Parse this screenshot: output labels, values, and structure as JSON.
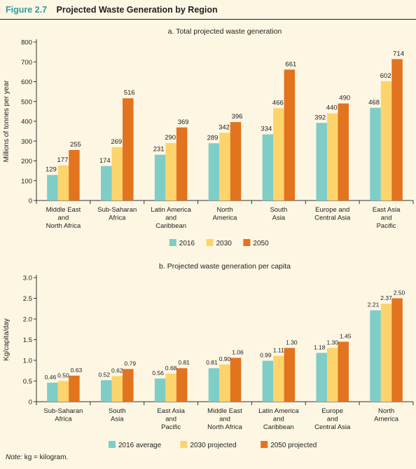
{
  "figure": {
    "label": "Figure 2.7",
    "title": "Projected Waste Generation by Region",
    "note_label": "Note:",
    "note_text": "kg = kilogram."
  },
  "colors": {
    "teal": "#7ecdc7",
    "yellow": "#fdd46c",
    "orange": "#e2731f",
    "background": "#fdf6e3"
  },
  "chart_data": [
    {
      "type": "bar",
      "title": "a. Total projected waste generation",
      "ylabel": "Millions of tonnes per year",
      "xlabel": "",
      "ylim": [
        0,
        800
      ],
      "yticks": [
        "0",
        "100",
        "200",
        "300",
        "400",
        "500",
        "600",
        "700",
        "800"
      ],
      "grid": false,
      "legend_position": "bottom",
      "categories": [
        [
          "Middle East",
          "and",
          "North Africa"
        ],
        [
          "Sub-Saharan",
          "Africa"
        ],
        [
          "Latin America",
          "and",
          "Caribbean"
        ],
        [
          "North",
          "America"
        ],
        [
          "South",
          "Asia"
        ],
        [
          "Europe and",
          "Central Asia"
        ],
        [
          "East Asia",
          "and",
          "Pacific"
        ]
      ],
      "series": [
        {
          "name": "2016",
          "color": "#7ecdc7",
          "values": [
            129,
            174,
            231,
            289,
            334,
            392,
            468
          ]
        },
        {
          "name": "2030",
          "color": "#fdd46c",
          "values": [
            177,
            269,
            290,
            342,
            466,
            440,
            602
          ]
        },
        {
          "name": "2050",
          "color": "#e2731f",
          "values": [
            255,
            516,
            369,
            396,
            661,
            490,
            714
          ]
        }
      ],
      "data_labels": [
        [
          "129",
          "174",
          "231",
          "289",
          "334",
          "392",
          "468"
        ],
        [
          "177",
          "269",
          "290",
          "342",
          "466",
          "440",
          "602"
        ],
        [
          "255",
          "516",
          "369",
          "396",
          "661",
          "490",
          "714"
        ]
      ]
    },
    {
      "type": "bar",
      "title": "b. Projected waste generation per capita",
      "ylabel": "Kg/capita/day",
      "xlabel": "",
      "ylim": [
        0,
        3.0
      ],
      "yticks": [
        "0",
        "0.5",
        "1.0",
        "1.5",
        "2.0",
        "2.5",
        "3.0"
      ],
      "grid": false,
      "legend_position": "bottom",
      "categories": [
        [
          "Sub-Saharan",
          "Africa"
        ],
        [
          "South",
          "Asia"
        ],
        [
          "East Asia",
          "and",
          "Pacific"
        ],
        [
          "Middle East",
          "and",
          "North Africa"
        ],
        [
          "Latin America",
          "and",
          "Caribbean"
        ],
        [
          "Europe",
          "and",
          "Central Asia"
        ],
        [
          "North",
          "America"
        ]
      ],
      "series": [
        {
          "name": "2016 average",
          "color": "#7ecdc7",
          "values": [
            0.46,
            0.52,
            0.56,
            0.81,
            0.99,
            1.18,
            2.21
          ]
        },
        {
          "name": "2030 projected",
          "color": "#fdd46c",
          "values": [
            0.5,
            0.62,
            0.68,
            0.9,
            1.11,
            1.3,
            2.37
          ]
        },
        {
          "name": "2050 projected",
          "color": "#e2731f",
          "values": [
            0.63,
            0.79,
            0.81,
            1.06,
            1.3,
            1.45,
            2.5
          ]
        }
      ],
      "data_labels": [
        [
          "0.46",
          "0.52",
          "0.56",
          "0.81",
          "0.99",
          "1.18",
          "2.21"
        ],
        [
          "0.50",
          "0.62",
          "0.68",
          "0.90",
          "1.11",
          "1.30",
          "2.37"
        ],
        [
          "0.63",
          "0.79",
          "0.81",
          "1.06",
          "1.30",
          "1.45",
          "2.50"
        ]
      ]
    }
  ]
}
